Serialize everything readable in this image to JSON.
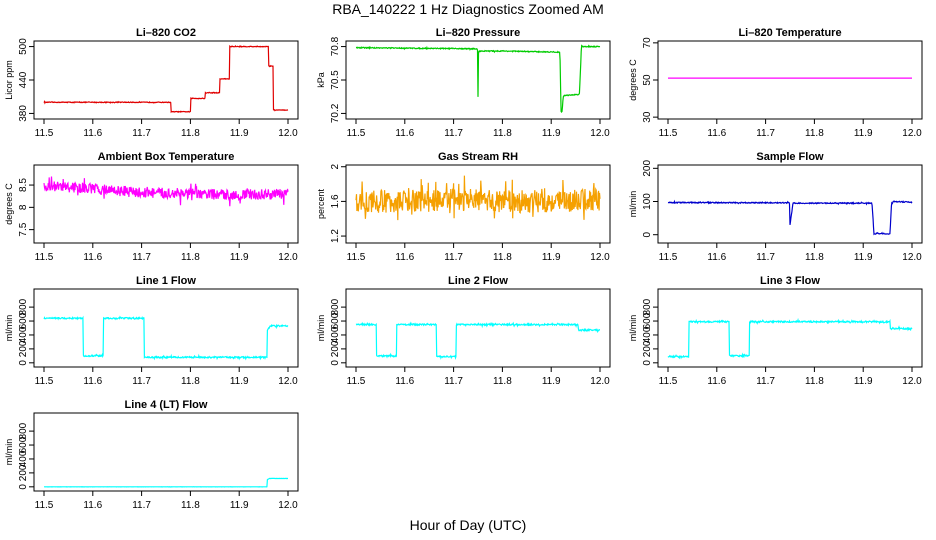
{
  "figure": {
    "title": "RBA_140222  1 Hz Diagnostics Zoomed AM",
    "xlabel": "Hour of Day (UTC)"
  },
  "chart_data": [
    {
      "type": "line",
      "title": "Li–820 CO2",
      "ylabel": "Licor ppm",
      "color": "#e00000",
      "xlim": [
        11.5,
        12.0
      ],
      "ylim": [
        370,
        510
      ],
      "xticks": [
        "11.5",
        "11.6",
        "11.7",
        "11.8",
        "11.9",
        "12.0"
      ],
      "yticks": [
        380,
        440,
        500
      ],
      "noise": 0.6,
      "series": [
        {
          "x": [
            11.5,
            11.76,
            11.76,
            11.8,
            11.8,
            11.83,
            11.83,
            11.86,
            11.86,
            11.88,
            11.88,
            11.96,
            11.96,
            11.97,
            11.97,
            12.0
          ],
          "y": [
            400,
            400,
            383,
            383,
            407,
            407,
            417,
            417,
            442,
            442,
            500,
            500,
            465,
            465,
            386,
            386
          ]
        }
      ]
    },
    {
      "type": "line",
      "title": "Li–820 Pressure",
      "ylabel": "kPa",
      "color": "#00cc00",
      "xlim": [
        11.5,
        12.0
      ],
      "ylim": [
        70.15,
        70.85
      ],
      "xticks": [
        "11.5",
        "11.6",
        "11.7",
        "11.8",
        "11.9",
        "12.0"
      ],
      "yticks": [
        70.2,
        70.5,
        70.8
      ],
      "noise": 0.004,
      "series": [
        {
          "x": [
            11.5,
            11.749,
            11.75,
            11.751,
            11.752,
            11.8,
            11.918,
            11.92,
            11.922,
            11.925,
            11.955,
            11.958,
            11.962,
            11.965,
            12.0
          ],
          "y": [
            70.79,
            70.78,
            70.35,
            70.75,
            70.76,
            70.76,
            70.75,
            70.22,
            70.21,
            70.36,
            70.37,
            70.38,
            70.81,
            70.8,
            70.8
          ]
        }
      ]
    },
    {
      "type": "line",
      "title": "Li–820 Temperature",
      "ylabel": "degrees C",
      "color": "#ff00ff",
      "xlim": [
        11.5,
        12.0
      ],
      "ylim": [
        29,
        71
      ],
      "xticks": [
        "11.5",
        "11.6",
        "11.7",
        "11.8",
        "11.9",
        "12.0"
      ],
      "yticks": [
        30,
        50,
        70
      ],
      "noise": 0,
      "series": [
        {
          "x": [
            11.5,
            12.0
          ],
          "y": [
            51,
            51
          ]
        }
      ]
    },
    {
      "type": "line",
      "title": "Ambient Box Temperature",
      "ylabel": "degrees C",
      "color": "#ff00ff",
      "xlim": [
        11.5,
        12.0
      ],
      "ylim": [
        7.2,
        8.95
      ],
      "xticks": [
        "11.5",
        "11.6",
        "11.7",
        "11.8",
        "11.9",
        "12.0"
      ],
      "yticks": [
        7.5,
        8.0,
        8.5
      ],
      "noise": 0.12,
      "series": [
        {
          "x": [
            11.5,
            11.6,
            11.7,
            11.8,
            11.9,
            12.0
          ],
          "y": [
            8.48,
            8.42,
            8.33,
            8.3,
            8.28,
            8.3
          ]
        }
      ]
    },
    {
      "type": "line",
      "title": "Gas Stream RH",
      "ylabel": "percent",
      "color": "#f5a000",
      "xlim": [
        11.5,
        12.0
      ],
      "ylim": [
        1.12,
        2.02
      ],
      "xticks": [
        "11.5",
        "11.6",
        "11.7",
        "11.8",
        "11.9",
        "12.0"
      ],
      "yticks": [
        1.2,
        1.6,
        2.0
      ],
      "noise": 0.13,
      "series": [
        {
          "x": [
            11.5,
            11.6,
            11.7,
            11.8,
            11.9,
            12.0
          ],
          "y": [
            1.6,
            1.6,
            1.62,
            1.6,
            1.6,
            1.62
          ]
        }
      ]
    },
    {
      "type": "line",
      "title": "Sample Flow",
      "ylabel": "ml/min",
      "color": "#0000cc",
      "xlim": [
        11.5,
        12.0
      ],
      "ylim": [
        -25,
        210
      ],
      "xticks": [
        "11.5",
        "11.6",
        "11.7",
        "11.8",
        "11.9",
        "12.0"
      ],
      "yticks": [
        0,
        100,
        200
      ],
      "noise": 1.5,
      "series": [
        {
          "x": [
            11.5,
            11.749,
            11.75,
            11.753,
            11.756,
            11.9,
            11.918,
            11.922,
            11.955,
            11.958,
            11.962,
            12.0
          ],
          "y": [
            97,
            96,
            30,
            60,
            95,
            95,
            95,
            3,
            3,
            95,
            100,
            98
          ]
        }
      ]
    },
    {
      "type": "line",
      "title": "Line 1 Flow",
      "ylabel": "ml/min",
      "color": "#00ffff",
      "xlim": [
        11.5,
        12.0
      ],
      "ylim": [
        -60,
        1060
      ],
      "xticks": [
        "11.5",
        "11.6",
        "11.7",
        "11.8",
        "11.9",
        "12.0"
      ],
      "yticks": [
        0,
        200,
        400,
        600,
        800
      ],
      "noise": 10,
      "series": [
        {
          "x": [
            11.5,
            11.58,
            11.58,
            11.622,
            11.622,
            11.705,
            11.705,
            11.957,
            11.957,
            11.963,
            12.0
          ],
          "y": [
            640,
            640,
            100,
            100,
            640,
            640,
            80,
            80,
            460,
            530,
            530
          ]
        }
      ]
    },
    {
      "type": "line",
      "title": "Line 2 Flow",
      "ylabel": "ml/min",
      "color": "#00ffff",
      "xlim": [
        11.5,
        12.0
      ],
      "ylim": [
        -60,
        1060
      ],
      "xticks": [
        "11.5",
        "11.6",
        "11.7",
        "11.8",
        "11.9",
        "12.0"
      ],
      "yticks": [
        0,
        200,
        400,
        600,
        800
      ],
      "noise": 10,
      "series": [
        {
          "x": [
            11.5,
            11.542,
            11.542,
            11.583,
            11.583,
            11.665,
            11.665,
            11.705,
            11.705,
            11.955,
            11.955,
            12.0
          ],
          "y": [
            550,
            550,
            100,
            100,
            550,
            550,
            90,
            90,
            550,
            550,
            470,
            470
          ]
        }
      ]
    },
    {
      "type": "line",
      "title": "Line 3 Flow",
      "ylabel": "ml/min",
      "color": "#00ffff",
      "xlim": [
        11.5,
        12.0
      ],
      "ylim": [
        -60,
        1060
      ],
      "xticks": [
        "11.5",
        "11.6",
        "11.7",
        "11.8",
        "11.9",
        "12.0"
      ],
      "yticks": [
        0,
        200,
        400,
        600,
        800
      ],
      "noise": 10,
      "series": [
        {
          "x": [
            11.5,
            11.543,
            11.543,
            11.625,
            11.625,
            11.667,
            11.667,
            11.955,
            11.955,
            12.0
          ],
          "y": [
            90,
            90,
            590,
            590,
            100,
            100,
            590,
            590,
            490,
            490
          ]
        }
      ]
    },
    {
      "type": "line",
      "title": "Line 4 (LT) Flow",
      "ylabel": "ml/min",
      "color": "#00ffff",
      "xlim": [
        11.5,
        12.0
      ],
      "ylim": [
        -60,
        1060
      ],
      "xticks": [
        "11.5",
        "11.6",
        "11.7",
        "11.8",
        "11.9",
        "12.0"
      ],
      "yticks": [
        0,
        200,
        400,
        600,
        800
      ],
      "noise": 1,
      "series": [
        {
          "x": [
            11.5,
            11.957,
            11.957,
            11.962,
            12.0
          ],
          "y": [
            0,
            0,
            100,
            120,
            120
          ]
        }
      ]
    }
  ]
}
